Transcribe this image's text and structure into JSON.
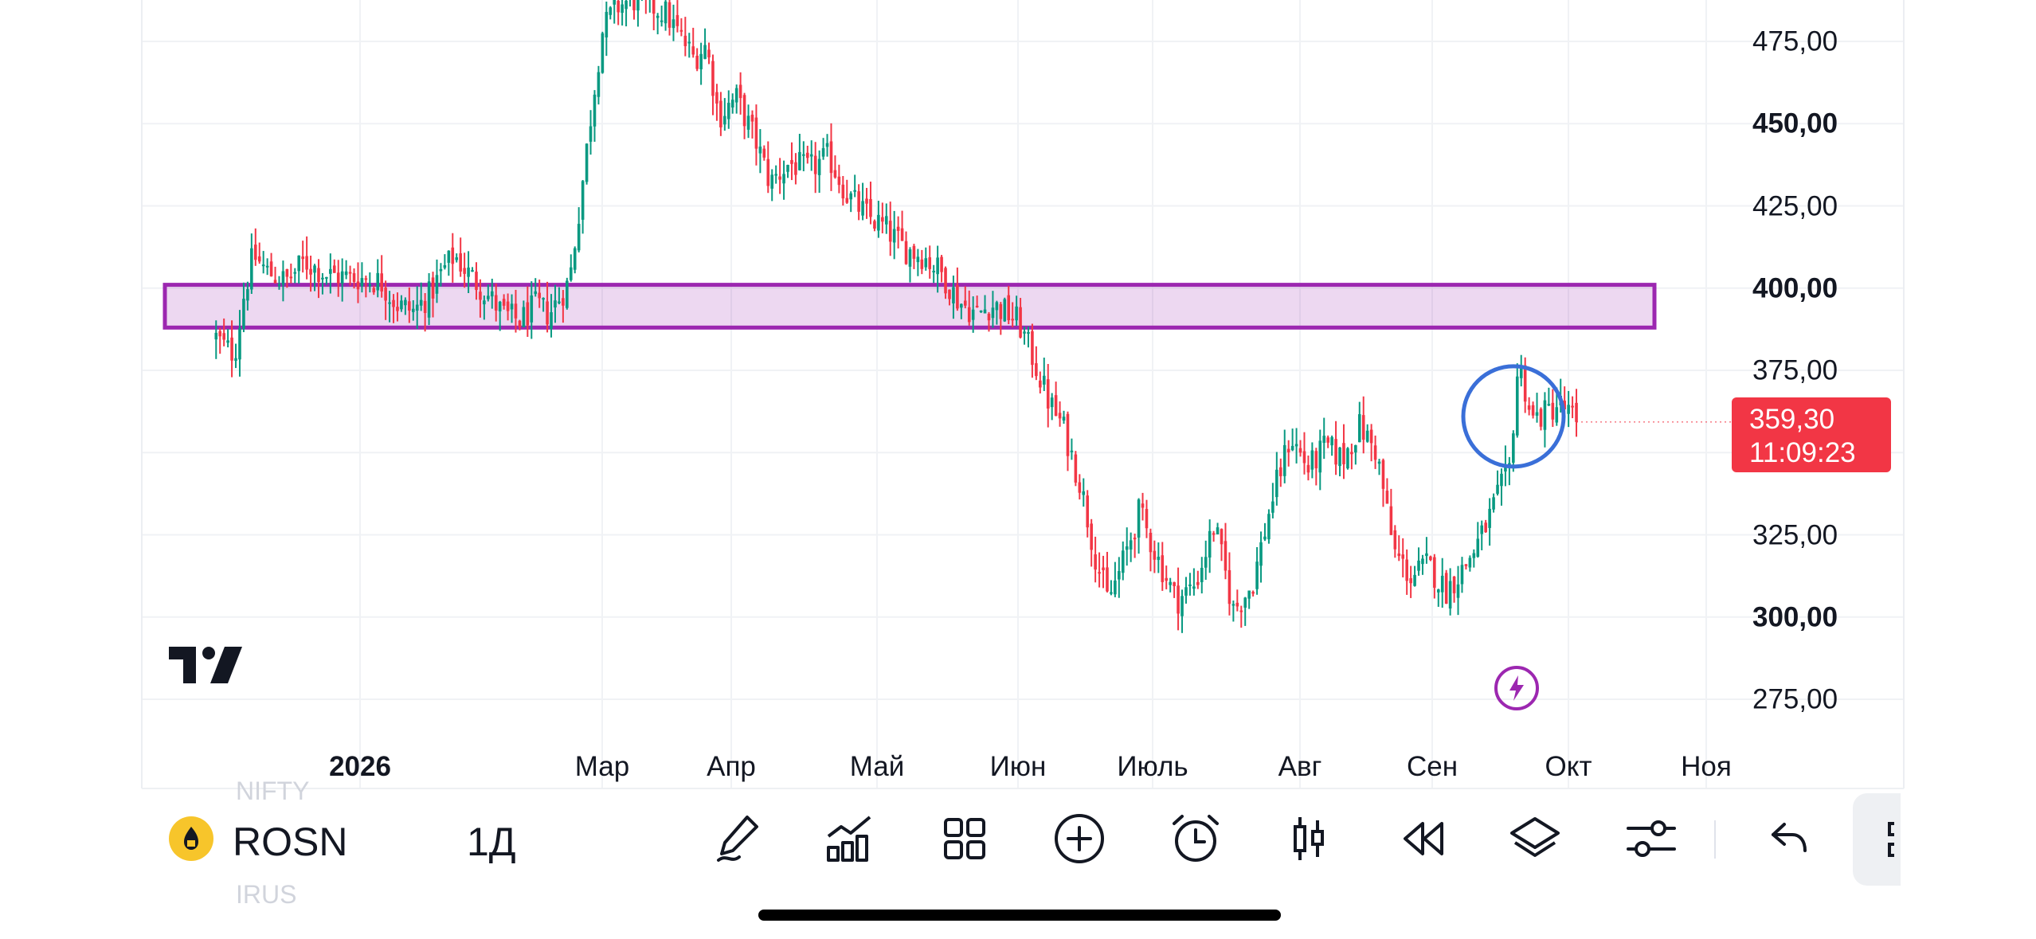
{
  "symbol": {
    "ticker": "ROSN",
    "interval": "1Д",
    "logo_color": "#f7c52b"
  },
  "price_axis": {
    "ticks": [
      {
        "label": "475,00",
        "value": 475,
        "bold": false
      },
      {
        "label": "450,00",
        "value": 450,
        "bold": true
      },
      {
        "label": "425,00",
        "value": 425,
        "bold": false
      },
      {
        "label": "400,00",
        "value": 400,
        "bold": true
      },
      {
        "label": "375,00",
        "value": 375,
        "bold": false
      },
      {
        "label": "325,00",
        "value": 325,
        "bold": false
      },
      {
        "label": "300,00",
        "value": 300,
        "bold": true
      },
      {
        "label": "275,00",
        "value": 275,
        "bold": false
      }
    ]
  },
  "last_price": {
    "value": "359,30",
    "countdown": "11:09:23",
    "color": "#f23645"
  },
  "time_axis": {
    "labels": [
      {
        "text": "2026",
        "bold": true
      },
      {
        "text": "Мар",
        "bold": false
      },
      {
        "text": "Апр",
        "bold": false
      },
      {
        "text": "Май",
        "bold": false
      },
      {
        "text": "Июн",
        "bold": false
      },
      {
        "text": "Июль",
        "bold": false
      },
      {
        "text": "Авг",
        "bold": false
      },
      {
        "text": "Сен",
        "bold": false
      },
      {
        "text": "Окт",
        "bold": false
      },
      {
        "text": "Ноя",
        "bold": false
      }
    ]
  },
  "drawings": {
    "zone": {
      "from": 388,
      "to": 401,
      "color": "#9c27b0"
    },
    "highlight_circle": {
      "color": "#3a6fd8"
    }
  },
  "toolbar": {
    "icons": [
      "pen-icon",
      "indicators-icon",
      "layout-grid-icon",
      "add-circle-icon",
      "alarm-icon",
      "candles-icon",
      "replay-icon",
      "layers-icon",
      "settings-sliders-icon",
      "undo-icon"
    ]
  },
  "ghost_text": {
    "top": "NIFTY",
    "bottom": "IRUS"
  },
  "colors": {
    "up": "#089981",
    "down": "#f23645",
    "grid": "#f0f2f5"
  },
  "chart_data": {
    "type": "candlestick",
    "ylim": [
      262,
      488
    ],
    "path": [
      [
        "2025-12-01",
        385
      ],
      [
        "2025-12-03",
        382
      ],
      [
        "2025-12-05",
        380
      ],
      [
        "2025-12-07",
        398
      ],
      [
        "2025-12-09",
        410
      ],
      [
        "2025-12-12",
        405
      ],
      [
        "2025-12-16",
        402
      ],
      [
        "2025-12-20",
        408
      ],
      [
        "2025-12-25",
        404
      ],
      [
        "2026-01-01",
        403
      ],
      [
        "2026-01-06",
        402
      ],
      [
        "2026-01-10",
        395
      ],
      [
        "2026-01-14",
        393
      ],
      [
        "2026-01-18",
        398
      ],
      [
        "2026-01-21",
        405
      ],
      [
        "2026-01-24",
        410
      ],
      [
        "2026-01-27",
        405
      ],
      [
        "2026-02-01",
        398
      ],
      [
        "2026-02-05",
        392
      ],
      [
        "2026-02-09",
        390
      ],
      [
        "2026-02-13",
        395
      ],
      [
        "2026-02-16",
        392
      ],
      [
        "2026-02-19",
        398
      ],
      [
        "2026-02-21",
        402
      ],
      [
        "2026-02-23",
        420
      ],
      [
        "2026-02-25",
        440
      ],
      [
        "2026-02-27",
        460
      ],
      [
        "2026-03-01",
        478
      ],
      [
        "2026-03-04",
        485
      ],
      [
        "2026-03-08",
        488
      ],
      [
        "2026-03-12",
        486
      ],
      [
        "2026-03-16",
        484
      ],
      [
        "2026-03-19",
        478
      ],
      [
        "2026-03-23",
        470
      ],
      [
        "2026-03-26",
        474
      ],
      [
        "2026-03-29",
        452
      ],
      [
        "2026-04-02",
        458
      ],
      [
        "2026-04-06",
        445
      ],
      [
        "2026-04-09",
        432
      ],
      [
        "2026-04-13",
        438
      ],
      [
        "2026-04-17",
        436
      ],
      [
        "2026-04-21",
        440
      ],
      [
        "2026-04-25",
        428
      ],
      [
        "2026-04-29",
        422
      ],
      [
        "2026-05-03",
        418
      ],
      [
        "2026-05-07",
        412
      ],
      [
        "2026-05-11",
        410
      ],
      [
        "2026-05-15",
        405
      ],
      [
        "2026-05-19",
        396
      ],
      [
        "2026-05-23",
        392
      ],
      [
        "2026-05-26",
        395
      ],
      [
        "2026-05-29",
        393
      ],
      [
        "2026-06-01",
        390
      ],
      [
        "2026-06-04",
        380
      ],
      [
        "2026-06-08",
        365
      ],
      [
        "2026-06-11",
        358
      ],
      [
        "2026-06-15",
        340
      ],
      [
        "2026-06-18",
        320
      ],
      [
        "2026-06-21",
        305
      ],
      [
        "2026-06-24",
        315
      ],
      [
        "2026-06-28",
        332
      ],
      [
        "2026-07-02",
        318
      ],
      [
        "2026-07-06",
        305
      ],
      [
        "2026-07-10",
        310
      ],
      [
        "2026-07-14",
        328
      ],
      [
        "2026-07-18",
        302
      ],
      [
        "2026-07-22",
        310
      ],
      [
        "2026-07-26",
        335
      ],
      [
        "2026-07-30",
        355
      ],
      [
        "2026-08-03",
        345
      ],
      [
        "2026-08-07",
        352
      ],
      [
        "2026-08-11",
        348
      ],
      [
        "2026-08-15",
        358
      ],
      [
        "2026-08-19",
        350
      ],
      [
        "2026-08-23",
        320
      ],
      [
        "2026-08-27",
        312
      ],
      [
        "2026-08-31",
        316
      ],
      [
        "2026-09-04",
        308
      ],
      [
        "2026-09-08",
        315
      ],
      [
        "2026-09-12",
        325
      ],
      [
        "2026-09-15",
        335
      ],
      [
        "2026-09-18",
        345
      ],
      [
        "2026-09-20",
        378
      ],
      [
        "2026-09-23",
        360
      ],
      [
        "2026-09-26",
        362
      ],
      [
        "2026-09-29",
        365
      ],
      [
        "2026-10-01",
        362
      ],
      [
        "2026-10-03",
        359.3
      ]
    ]
  }
}
